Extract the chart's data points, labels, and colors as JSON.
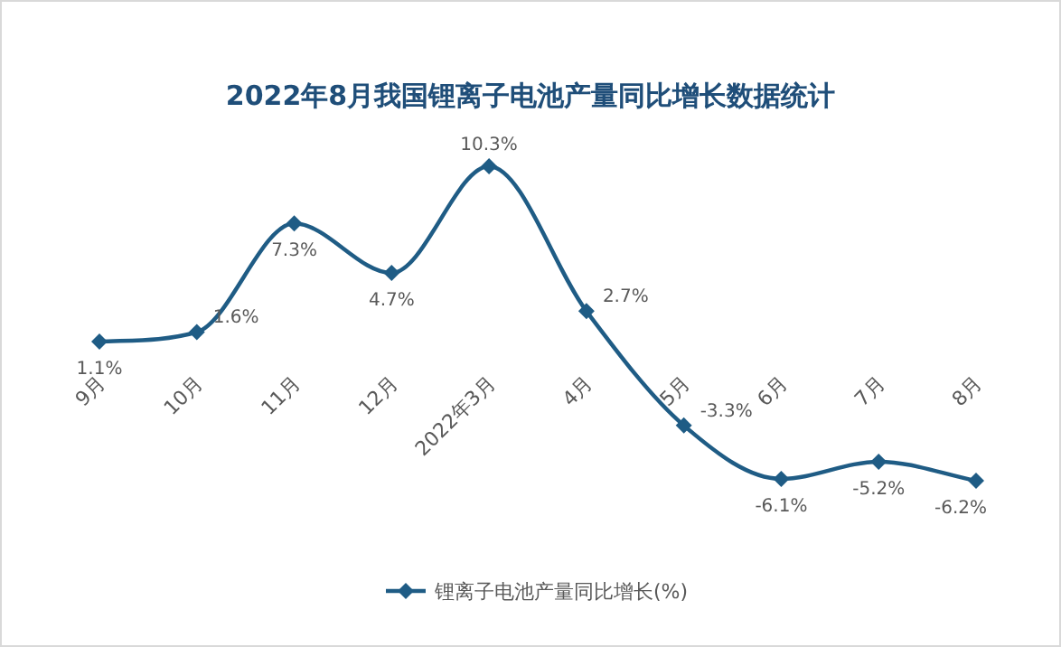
{
  "chart_data": {
    "type": "line",
    "title": "2022年8月我国锂离子电池产量同比增长数据统计",
    "relative": false,
    "categories": [
      "9月",
      "10月",
      "11月",
      "12月",
      "2022年3月",
      "4月",
      "5月",
      "6月",
      "7月",
      "8月"
    ],
    "series": [
      {
        "name": "锂离子电池产量同比增长(%)",
        "color": "#1f5c85",
        "values": [
          1.1,
          1.6,
          7.3,
          4.7,
          10.3,
          2.7,
          -3.3,
          -6.1,
          -5.2,
          -6.2
        ],
        "value_labels": [
          "1.1%",
          "1.6%",
          "7.3%",
          "4.7%",
          "10.3%",
          "2.7%",
          "-3.3%",
          "-6.1%",
          "-5.2%",
          "-6.2%"
        ]
      }
    ],
    "legend": "bottom",
    "marker": "diamond",
    "line_style": "solid"
  }
}
